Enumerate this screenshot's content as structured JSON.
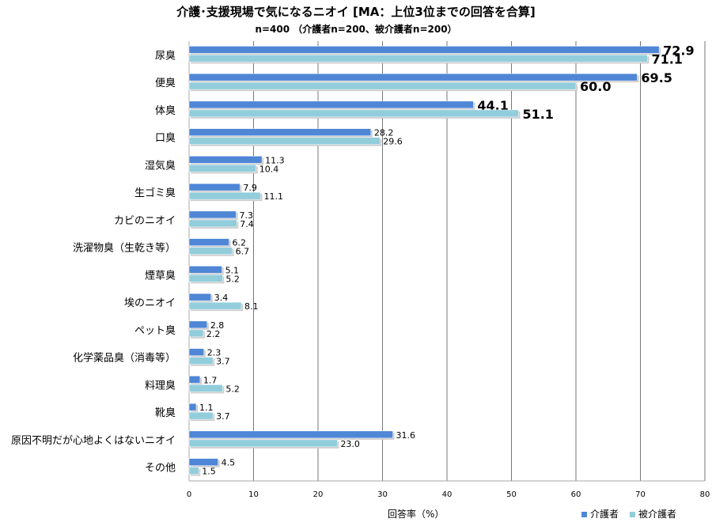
{
  "chart_data": {
    "type": "bar",
    "orientation": "horizontal",
    "title": "介護･支援現場で気になるニオイ [MA：上位3位までの回答を合算]",
    "subtitle": "n=400 （介護者n=200、被介護者n=200）",
    "xlabel": "回答率（%）",
    "xlim": [
      0,
      80
    ],
    "xticks": [
      0,
      10,
      20,
      30,
      40,
      50,
      60,
      70,
      80
    ],
    "grid": true,
    "legend_position": "bottom-right",
    "categories": [
      "尿臭",
      "便臭",
      "体臭",
      "口臭",
      "湿気臭",
      "生ゴミ臭",
      "カビのニオイ",
      "洗濯物臭（生乾き等）",
      "煙草臭",
      "埃のニオイ",
      "ペット臭",
      "化学薬品臭（消毒等）",
      "料理臭",
      "靴臭",
      "原因不明だが心地よくはないニオイ",
      "その他"
    ],
    "series": [
      {
        "name": "介護者",
        "color": "#4f86d6",
        "values": [
          72.9,
          69.5,
          44.1,
          28.2,
          11.3,
          7.9,
          7.3,
          6.2,
          5.1,
          3.4,
          2.8,
          2.3,
          1.7,
          1.1,
          31.6,
          4.5
        ]
      },
      {
        "name": "被介護者",
        "color": "#92cddc",
        "values": [
          71.1,
          60.0,
          51.1,
          29.6,
          10.4,
          11.1,
          7.4,
          6.7,
          5.2,
          8.1,
          2.2,
          3.7,
          5.2,
          3.7,
          23.0,
          1.5
        ]
      }
    ]
  }
}
